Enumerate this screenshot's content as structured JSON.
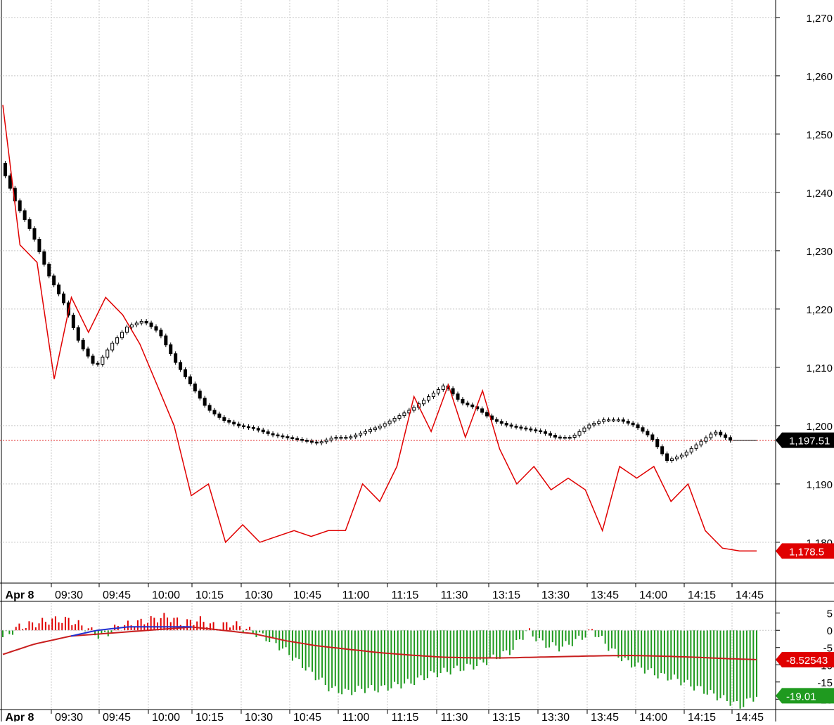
{
  "chart_data": [
    {
      "type": "candlestick",
      "x_labels": [
        "Apr 8",
        "09:30",
        "09:45",
        "10:00",
        "10:15",
        "10:30",
        "10:45",
        "11:00",
        "11:15",
        "11:30",
        "13:15",
        "13:30",
        "13:45",
        "14:00",
        "14:15",
        "14:45"
      ],
      "y_ticks": [
        "1,270",
        "1,260",
        "1,250",
        "1,240",
        "1,230",
        "1,220",
        "1,210",
        "1,200",
        "1,190",
        "1,180"
      ],
      "ylim": [
        1173,
        1273
      ],
      "grid": true,
      "price_series": {
        "name": "",
        "values": [
          1245,
          1238,
          1233,
          1226,
          1221,
          1214,
          1210,
          1214,
          1217,
          1218,
          1216,
          1211,
          1207,
          1203,
          1201,
          1200,
          1199.5,
          1198.5,
          1198,
          1197.5,
          1197,
          1198,
          1198,
          1199,
          1200,
          1201.5,
          1203,
          1205,
          1207,
          1204,
          1203,
          1201,
          1200,
          1199.5,
          1199,
          1198,
          1198,
          1200,
          1201,
          1201,
          1200,
          1198,
          1194,
          1195,
          1197,
          1199,
          1197.5
        ]
      },
      "red_line_series": {
        "name": "",
        "values": [
          1255,
          1231,
          1228,
          1208,
          1222,
          1216,
          1222,
          1219,
          1214,
          1207,
          1200,
          1188,
          1190,
          1180,
          1183,
          1180,
          1181,
          1182,
          1181,
          1182,
          1182,
          1190,
          1187,
          1193,
          1205,
          1199,
          1207,
          1198,
          1206,
          1196,
          1190,
          1193,
          1189,
          1191,
          1189,
          1182,
          1193,
          1191,
          1193,
          1187,
          1190,
          1182,
          1179,
          1178.5,
          1178.5
        ]
      },
      "reference_line": {
        "value": 1197.5,
        "style": "dotted",
        "color": "#e02020"
      },
      "last_value_labels": [
        {
          "text": "1,197.51",
          "value": 1197.51,
          "color": "#000000"
        },
        {
          "text": "1,178.5",
          "value": 1178.5,
          "color": "#e00000"
        }
      ]
    },
    {
      "type": "bar",
      "x_labels": [
        "Apr 8",
        "09:30",
        "09:45",
        "10:00",
        "10:15",
        "10:30",
        "10:45",
        "11:00",
        "11:15",
        "11:30",
        "13:15",
        "13:30",
        "13:45",
        "14:00",
        "14:15",
        "14:45"
      ],
      "y_ticks": [
        "5",
        "0",
        "-5",
        "-10",
        "-15",
        "-20"
      ],
      "ylim": [
        -23,
        8
      ],
      "histogram": [
        -2,
        1,
        2,
        3,
        3,
        1,
        -2,
        1,
        2,
        3,
        4,
        2,
        3,
        1,
        2,
        0,
        -2,
        -5,
        -9,
        -13,
        -17,
        -18,
        -17,
        -17,
        -16,
        -15,
        -13,
        -12,
        -11,
        -10,
        -8,
        -6,
        0,
        -4,
        -5,
        -3,
        0,
        -5,
        -9,
        -11,
        -13,
        -14,
        -16,
        -18,
        -20,
        -22,
        -19
      ],
      "signal_line": [
        -7,
        -4,
        -2,
        0,
        1,
        1,
        1,
        0,
        -1,
        -3,
        -4.5,
        -5.5,
        -6.5,
        -7.2,
        -7.8,
        -8.0,
        -8.0,
        -7.8,
        -7.6,
        -7.4,
        -7.3,
        -7.5,
        -7.8,
        -8.2,
        -8.5
      ],
      "last_value_labels": [
        {
          "text": "-8.52543",
          "value": -8.52543,
          "color": "#e00000"
        },
        {
          "text": "-19.01",
          "value": -19.01,
          "color": "#1f9a1f"
        }
      ]
    }
  ]
}
